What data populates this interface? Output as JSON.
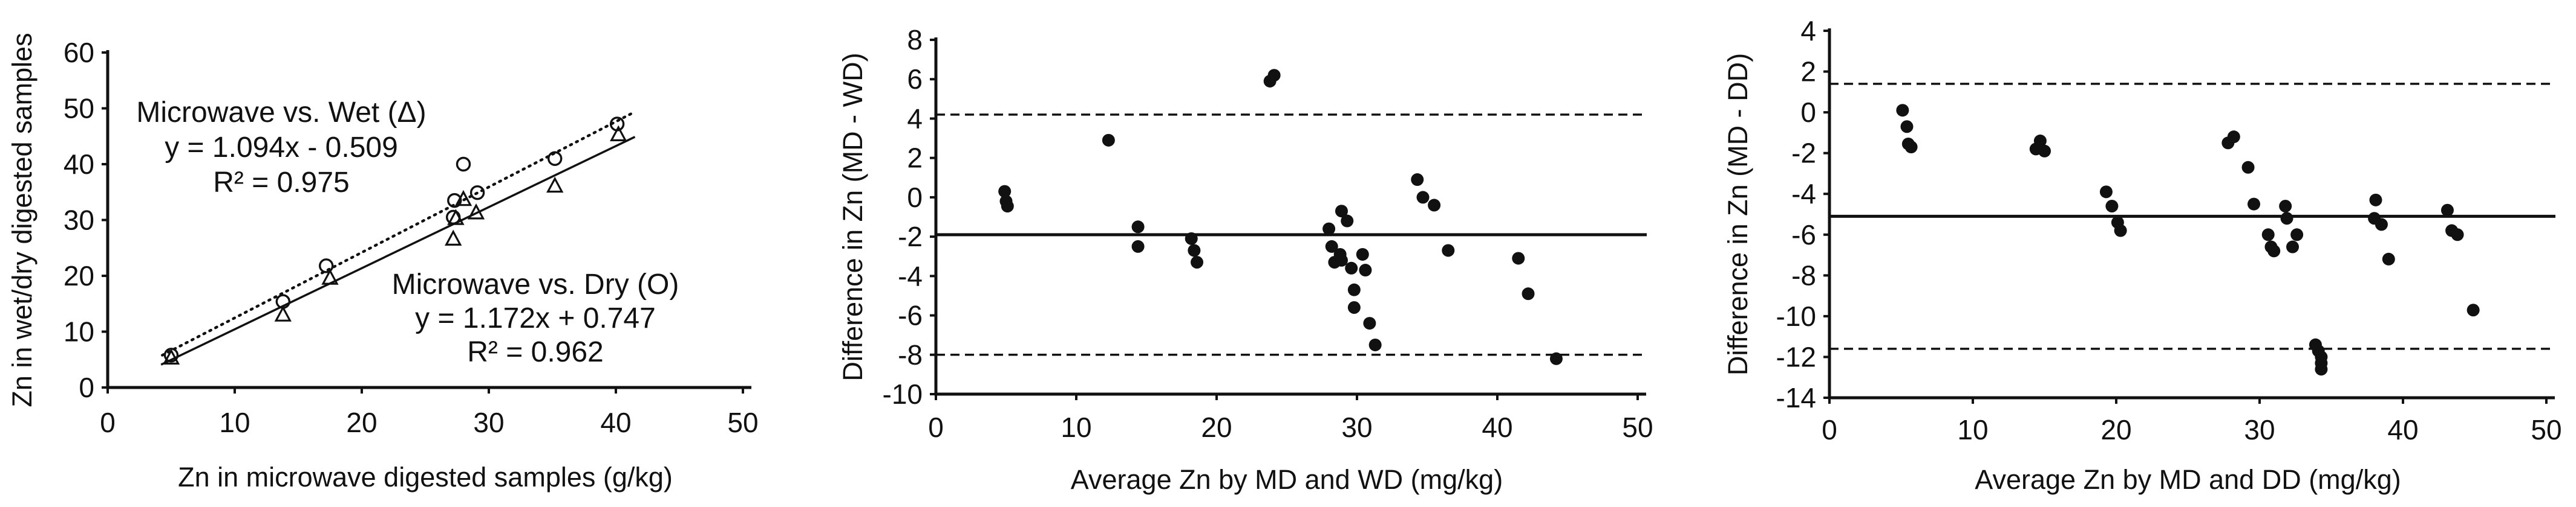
{
  "page": {
    "background": "#ffffff",
    "ink": "#111111"
  },
  "chart_data": [
    {
      "type": "scatter",
      "name": "regression-scatter",
      "xlabel": "Zn in microwave digested samples (g/kg)",
      "ylabel": "Zn in wet/dry digested samples",
      "xlim": [
        0,
        50
      ],
      "ylim": [
        0,
        60
      ],
      "xticks": [
        "0",
        "10",
        "20",
        "30",
        "40",
        "50"
      ],
      "yticks": [
        "0",
        "10",
        "20",
        "30",
        "40",
        "50",
        "60"
      ],
      "grid": false,
      "series": [
        {
          "name": "Microwave vs. Dry (O)",
          "marker": "circle",
          "equation": "y = 1.172x + 0.747",
          "r_squared": "R² = 0.962",
          "trend": {
            "style": "dotted",
            "slope": 1.172,
            "intercept": 0.747,
            "x1": 4.3,
            "x2": 41.3
          },
          "points": [
            [
              5.0,
              5.8
            ],
            [
              13.8,
              15.4
            ],
            [
              17.2,
              21.8
            ],
            [
              27.2,
              30.5
            ],
            [
              27.3,
              33.5
            ],
            [
              28.0,
              40.0
            ],
            [
              29.1,
              34.9
            ],
            [
              35.2,
              41.0
            ],
            [
              40.1,
              47.2
            ]
          ]
        },
        {
          "name": "Microwave vs. Wet (Δ)",
          "marker": "triangle",
          "equation": "y = 1.094x - 0.509",
          "r_squared": "R² = 0.975",
          "trend": {
            "style": "solid",
            "slope": 1.094,
            "intercept": -0.509,
            "x1": 4.2,
            "x2": 41.5
          },
          "points": [
            [
              5.0,
              5.2
            ],
            [
              13.8,
              12.9
            ],
            [
              17.5,
              19.5
            ],
            [
              27.2,
              26.5
            ],
            [
              27.4,
              30.2
            ],
            [
              28.0,
              33.6
            ],
            [
              29.0,
              31.2
            ],
            [
              35.2,
              36.0
            ],
            [
              40.2,
              45.2
            ]
          ]
        }
      ],
      "annotations": [
        {
          "lines": [
            "Microwave vs. Wet (Δ)",
            "y = 1.094x - 0.509",
            "R² = 0.975"
          ],
          "x": 465,
          "y": 202,
          "line_height": 58
        },
        {
          "lines": [
            "Microwave vs. Dry (O)",
            "y = 1.172x + 0.747",
            "R² = 0.962"
          ],
          "x": 885,
          "y": 487,
          "line_height": 56
        }
      ]
    },
    {
      "type": "scatter",
      "name": "bland-altman-md-wd",
      "xlabel": "Average Zn by MD and WD (mg/kg)",
      "ylabel": "Difference in Zn (MD - WD)",
      "xlim": [
        0,
        50
      ],
      "ylim": [
        -10,
        8
      ],
      "xticks": [
        "0",
        "10",
        "20",
        "30",
        "40",
        "50"
      ],
      "yticks": [
        "8",
        "6",
        "4",
        "2",
        "0",
        "-2",
        "-4",
        "-6",
        "-8",
        "-10"
      ],
      "grid": false,
      "mean_line": -1.9,
      "upper_loa": 4.2,
      "lower_loa": -8.0,
      "points": [
        [
          4.9,
          0.3
        ],
        [
          5.0,
          -0.2
        ],
        [
          5.1,
          -0.45
        ],
        [
          12.3,
          2.9
        ],
        [
          14.4,
          -1.5
        ],
        [
          14.4,
          -2.5
        ],
        [
          18.2,
          -2.1
        ],
        [
          18.4,
          -2.7
        ],
        [
          18.6,
          -3.3
        ],
        [
          23.8,
          5.9
        ],
        [
          24.1,
          6.2
        ],
        [
          28.0,
          -1.6
        ],
        [
          28.2,
          -2.5
        ],
        [
          28.4,
          -3.3
        ],
        [
          28.8,
          -2.9
        ],
        [
          28.9,
          -0.7
        ],
        [
          28.9,
          -3.2
        ],
        [
          29.3,
          -1.2
        ],
        [
          29.6,
          -3.6
        ],
        [
          29.8,
          -4.7
        ],
        [
          29.8,
          -5.6
        ],
        [
          30.4,
          -2.9
        ],
        [
          30.6,
          -3.7
        ],
        [
          30.9,
          -6.4
        ],
        [
          31.3,
          -7.5
        ],
        [
          34.3,
          0.9
        ],
        [
          34.7,
          0.0
        ],
        [
          35.5,
          -0.4
        ],
        [
          36.5,
          -2.7
        ],
        [
          41.5,
          -3.1
        ],
        [
          42.2,
          -4.9
        ],
        [
          44.2,
          -8.2
        ]
      ]
    },
    {
      "type": "scatter",
      "name": "bland-altman-md-dd",
      "xlabel": "Average Zn by MD and DD (mg/kg)",
      "ylabel": "Difference in Zn (MD - DD)",
      "xlim": [
        0,
        50
      ],
      "ylim": [
        -14,
        4
      ],
      "xticks": [
        "0",
        "10",
        "20",
        "30",
        "40",
        "50"
      ],
      "yticks": [
        "4",
        "2",
        "0",
        "-2",
        "-4",
        "-6",
        "-8",
        "-10",
        "-12",
        "-14"
      ],
      "grid": false,
      "mean_line": -5.1,
      "upper_loa": 1.4,
      "lower_loa": -11.6,
      "points": [
        [
          5.1,
          0.1
        ],
        [
          5.4,
          -0.7
        ],
        [
          5.5,
          -1.55
        ],
        [
          5.7,
          -1.7
        ],
        [
          14.4,
          -1.8
        ],
        [
          14.7,
          -1.4
        ],
        [
          15.0,
          -1.9
        ],
        [
          19.3,
          -3.9
        ],
        [
          19.7,
          -4.6
        ],
        [
          20.1,
          -5.4
        ],
        [
          20.3,
          -5.8
        ],
        [
          27.8,
          -1.5
        ],
        [
          28.2,
          -1.2
        ],
        [
          29.2,
          -2.7
        ],
        [
          29.6,
          -4.5
        ],
        [
          30.6,
          -6.0
        ],
        [
          30.8,
          -6.6
        ],
        [
          31.0,
          -6.8
        ],
        [
          31.8,
          -4.6
        ],
        [
          31.9,
          -5.2
        ],
        [
          32.3,
          -6.6
        ],
        [
          32.6,
          -6.0
        ],
        [
          33.9,
          -11.4
        ],
        [
          34.1,
          -11.7
        ],
        [
          34.3,
          -12.0
        ],
        [
          34.3,
          -12.3
        ],
        [
          34.3,
          -12.6
        ],
        [
          38.0,
          -5.2
        ],
        [
          38.1,
          -4.3
        ],
        [
          38.5,
          -5.5
        ],
        [
          39.0,
          -7.2
        ],
        [
          43.1,
          -4.8
        ],
        [
          43.4,
          -5.8
        ],
        [
          43.8,
          -6.0
        ],
        [
          44.9,
          -9.7
        ]
      ]
    }
  ]
}
